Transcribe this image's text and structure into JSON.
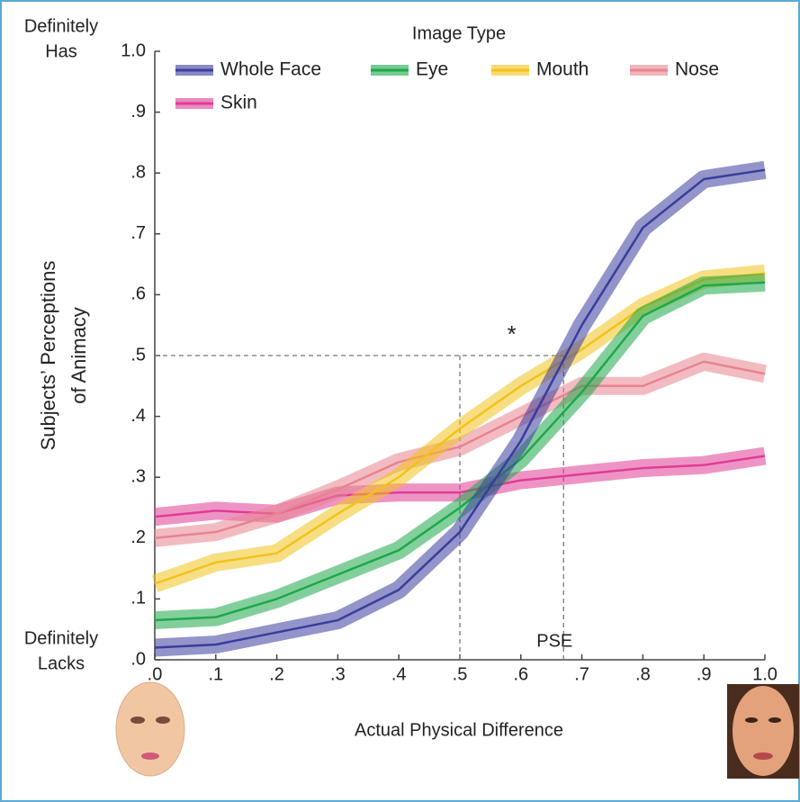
{
  "chart_data": {
    "type": "line",
    "legend_title": "Image Type",
    "x_label": "Actual Physical Difference",
    "y_label": [
      "Subjects’ Perceptions",
      "of Animacy"
    ],
    "y_top_label": [
      "Definitely",
      "Has"
    ],
    "y_bottom_label": [
      "Definitely",
      "Lacks"
    ],
    "annotations": {
      "pse": "PSE",
      "star": "*"
    },
    "reference_lines": {
      "y": 0.5,
      "x": [
        0.5,
        0.67
      ]
    },
    "x": [
      0,
      0.1,
      0.2,
      0.3,
      0.4,
      0.5,
      0.6,
      0.7,
      0.8,
      0.9,
      1.0
    ],
    "xlim": [
      0,
      1.0
    ],
    "ylim": [
      0,
      1.0
    ],
    "xticks": [
      {
        "value": 0,
        "label": ".0"
      },
      {
        "value": 0.1,
        "label": ".1"
      },
      {
        "value": 0.2,
        "label": ".2"
      },
      {
        "value": 0.3,
        "label": ".3"
      },
      {
        "value": 0.4,
        "label": ".4"
      },
      {
        "value": 0.5,
        "label": ".5"
      },
      {
        "value": 0.6,
        "label": ".6"
      },
      {
        "value": 0.7,
        "label": ".7"
      },
      {
        "value": 0.8,
        "label": ".8"
      },
      {
        "value": 0.9,
        "label": ".9"
      },
      {
        "value": 1.0,
        "label": "1.0"
      }
    ],
    "yticks": [
      {
        "value": 0,
        "label": ".0"
      },
      {
        "value": 0.1,
        "label": ".1"
      },
      {
        "value": 0.2,
        "label": ".2"
      },
      {
        "value": 0.3,
        "label": ".3"
      },
      {
        "value": 0.4,
        "label": ".4"
      },
      {
        "value": 0.5,
        "label": ".5"
      },
      {
        "value": 0.6,
        "label": ".6"
      },
      {
        "value": 0.7,
        "label": ".7"
      },
      {
        "value": 0.8,
        "label": ".8"
      },
      {
        "value": 0.9,
        "label": ".9"
      },
      {
        "value": 1.0,
        "label": "1.0"
      }
    ],
    "series": [
      {
        "name": "Whole Face",
        "color": "#3b3c9c",
        "values": [
          0.02,
          0.025,
          0.045,
          0.065,
          0.115,
          0.21,
          0.36,
          0.55,
          0.71,
          0.79,
          0.805
        ]
      },
      {
        "name": "Eye",
        "color": "#1ea84a",
        "values": [
          0.065,
          0.07,
          0.1,
          0.14,
          0.18,
          0.25,
          0.33,
          0.44,
          0.565,
          0.615,
          0.62
        ]
      },
      {
        "name": "Mouth",
        "color": "#f2c21b",
        "values": [
          0.125,
          0.16,
          0.175,
          0.24,
          0.3,
          0.38,
          0.45,
          0.51,
          0.58,
          0.625,
          0.635
        ]
      },
      {
        "name": "Nose",
        "color": "#e8848f",
        "values": [
          0.2,
          0.21,
          0.24,
          0.28,
          0.325,
          0.35,
          0.4,
          0.45,
          0.45,
          0.49,
          0.47
        ]
      },
      {
        "name": "Skin",
        "color": "#e03c96",
        "values": [
          0.235,
          0.245,
          0.24,
          0.27,
          0.275,
          0.275,
          0.295,
          0.305,
          0.315,
          0.32,
          0.335
        ]
      }
    ]
  }
}
